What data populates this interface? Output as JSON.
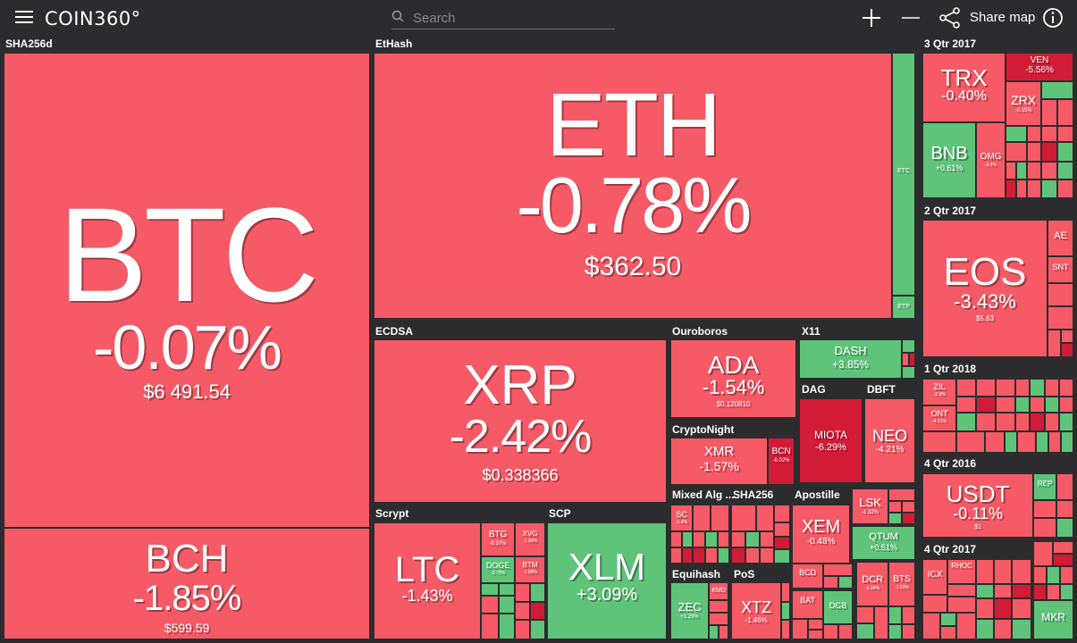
{
  "header": {
    "logo": "COIN360°",
    "search_placeholder": "Search",
    "share_label": "Share map"
  },
  "groups": {
    "sha256d": "SHA256d",
    "ethash": "EtHash",
    "ecdsa": "ECDSA",
    "ouroboros": "Ouroboros",
    "x11": "X11",
    "dag": "DAG",
    "dbft": "DBFT",
    "cryptonight": "CryptoNight",
    "scrypt": "Scrypt",
    "scp": "SCP",
    "mixed": "Mixed Alg ...",
    "sha256": "SHA256",
    "apostille": "Apostille",
    "equihash": "Equihash",
    "pos": "PoS",
    "q3_2017": "3 Qtr 2017",
    "q2_2017": "2 Qtr 2017",
    "q1_2018": "1 Qtr 2018",
    "q4_2016": "4 Qtr 2016",
    "q4_2017": "4 Qtr 2017"
  },
  "coins": {
    "btc": {
      "symbol": "BTC",
      "change": "-0.07%",
      "price": "$6 491.54"
    },
    "bch": {
      "symbol": "BCH",
      "change": "-1.85%",
      "price": "$599.59"
    },
    "eth": {
      "symbol": "ETH",
      "change": "-0.78%",
      "price": "$362.50"
    },
    "etc": {
      "symbol": "ETC"
    },
    "etp": {
      "symbol": "ETP"
    },
    "xrp": {
      "symbol": "XRP",
      "change": "-2.42%",
      "price": "$0.338366"
    },
    "ada": {
      "symbol": "ADA",
      "change": "-1.54%",
      "price": "$0.120810"
    },
    "dash": {
      "symbol": "DASH",
      "change": "+3.85%"
    },
    "miota": {
      "symbol": "MIOTA",
      "change": "-6.29%"
    },
    "neo": {
      "symbol": "NEO",
      "change": "-4.21%"
    },
    "xmr": {
      "symbol": "XMR",
      "change": "-1.57%"
    },
    "bcn": {
      "symbol": "BCN",
      "change": "-6.02%"
    },
    "ltc": {
      "symbol": "LTC",
      "change": "-1.43%"
    },
    "btg": {
      "symbol": "BTG",
      "change": "-0.37%"
    },
    "xvg": {
      "symbol": "XVG",
      "change": "-1.98%"
    },
    "doge": {
      "symbol": "DOGE",
      "change": "-0.75%"
    },
    "btm": {
      "symbol": "BTM",
      "change": "-1.98%"
    },
    "xlm": {
      "symbol": "XLM",
      "change": "+3.09%"
    },
    "sc": {
      "symbol": "SC",
      "change": "-1.4%"
    },
    "xem": {
      "symbol": "XEM",
      "change": "-0.48%"
    },
    "lsk": {
      "symbol": "LSK",
      "change": "-1.32%"
    },
    "qtum": {
      "symbol": "QTUM",
      "change": "+0.51%"
    },
    "zec": {
      "symbol": "ZEC",
      "change": "+1.29%"
    },
    "kmd": {
      "symbol": "KMD"
    },
    "xtz": {
      "symbol": "XTZ",
      "change": "-1.46%"
    },
    "bcd": {
      "symbol": "BCD"
    },
    "bat": {
      "symbol": "BAT"
    },
    "dgb": {
      "symbol": "DGB"
    },
    "dcr": {
      "symbol": "DCR",
      "change": "-1.34%"
    },
    "bts": {
      "symbol": "BTS",
      "change": "-1.53%"
    },
    "trx": {
      "symbol": "TRX",
      "change": "-0.40%"
    },
    "ven": {
      "symbol": "VEN",
      "change": "-5.56%"
    },
    "zrx": {
      "symbol": "ZRX",
      "change": "-0.15%"
    },
    "bnb": {
      "symbol": "BNB",
      "change": "+0.61%"
    },
    "omg": {
      "symbol": "OMG",
      "change": "-3.4%"
    },
    "eos": {
      "symbol": "EOS",
      "change": "-3.43%",
      "price": "$5.63"
    },
    "ae": {
      "symbol": "AE"
    },
    "snt": {
      "symbol": "SNT"
    },
    "zil": {
      "symbol": "ZIL",
      "change": "-2.3%"
    },
    "ont": {
      "symbol": "ONT",
      "change": "-4.51%"
    },
    "usdt": {
      "symbol": "USDT",
      "change": "-0.11%",
      "price": "$1"
    },
    "rep": {
      "symbol": "REP"
    },
    "icx": {
      "symbol": "ICX"
    },
    "rhoc": {
      "symbol": "RHOC"
    },
    "mkr": {
      "symbol": "MKR"
    }
  },
  "colors": {
    "negative": "#f65a66",
    "positive": "#5fc47a",
    "strong_negative": "#d21b37",
    "background": "#2c2c2e"
  }
}
